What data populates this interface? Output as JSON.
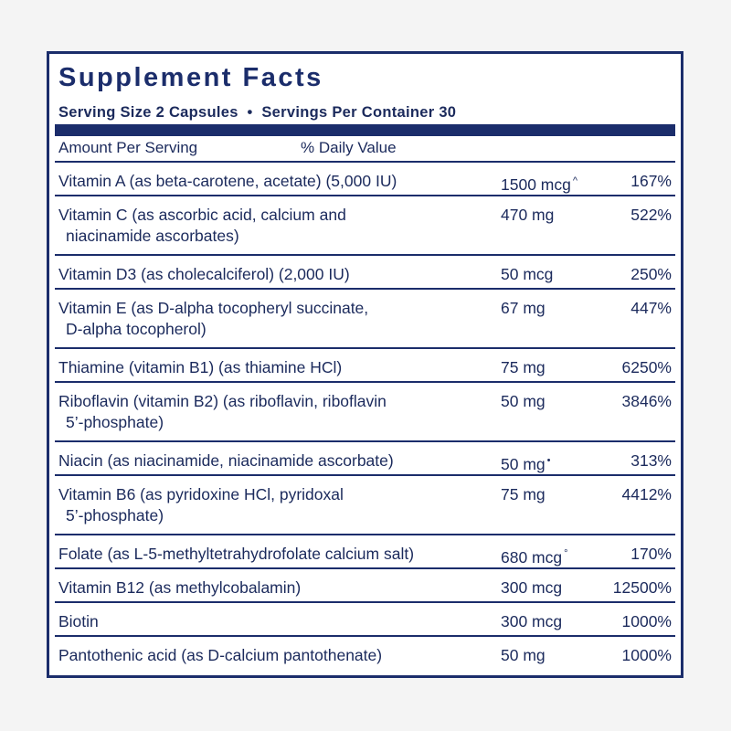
{
  "title": "Supplement Facts",
  "serving": {
    "serving_size": "Serving Size 2 Capsules",
    "bullet": "•",
    "servings_per_container": "Servings Per Container 30"
  },
  "header": {
    "amount": "Amount Per Serving",
    "daily_value": "% Daily Value"
  },
  "rows": [
    {
      "name": [
        "Vitamin A (as beta-carotene, acetate) (5,000 IU)"
      ],
      "amount": "1500 mcg",
      "mark": "^",
      "dv": "167%"
    },
    {
      "name": [
        "Vitamin C (as ascorbic acid, calcium and",
        "niacinamide ascorbates)"
      ],
      "amount": "470 mg",
      "dv": "522%"
    },
    {
      "name": [
        "Vitamin D3 (as cholecalciferol) (2,000 IU)"
      ],
      "amount": "50 mcg",
      "dv": "250%"
    },
    {
      "name": [
        "Vitamin E (as D-alpha tocopheryl succinate,",
        "D-alpha tocopherol)"
      ],
      "amount": "67 mg",
      "dv": "447%"
    },
    {
      "name": [
        "Thiamine (vitamin B1) (as thiamine HCl)"
      ],
      "amount": "75 mg",
      "dv": "6250%"
    },
    {
      "name": [
        "Riboflavin (vitamin B2) (as riboflavin, riboflavin",
        "5’-phosphate)"
      ],
      "amount": "50 mg",
      "dv": "3846%"
    },
    {
      "name": [
        "Niacin (as niacinamide, niacinamide ascorbate)"
      ],
      "amount": "50 mg",
      "mark": "•",
      "dv": "313%"
    },
    {
      "name": [
        "Vitamin B6 (as pyridoxine HCl, pyridoxal",
        "5’-phosphate)"
      ],
      "amount": "75 mg",
      "dv": "4412%"
    },
    {
      "name": [
        "Folate (as L-5-methyltetrahydrofolate calcium salt)"
      ],
      "amount": "680 mcg",
      "mark": "°",
      "dv": "170%"
    },
    {
      "name": [
        "Vitamin B12 (as methylcobalamin)"
      ],
      "amount": "300 mcg",
      "dv": "12500%"
    },
    {
      "name": [
        "Biotin"
      ],
      "amount": "300 mcg",
      "dv": "1000%"
    },
    {
      "name": [
        "Pantothenic acid (as D-calcium pantothenate)"
      ],
      "amount": "50 mg",
      "dv": "1000%"
    }
  ]
}
